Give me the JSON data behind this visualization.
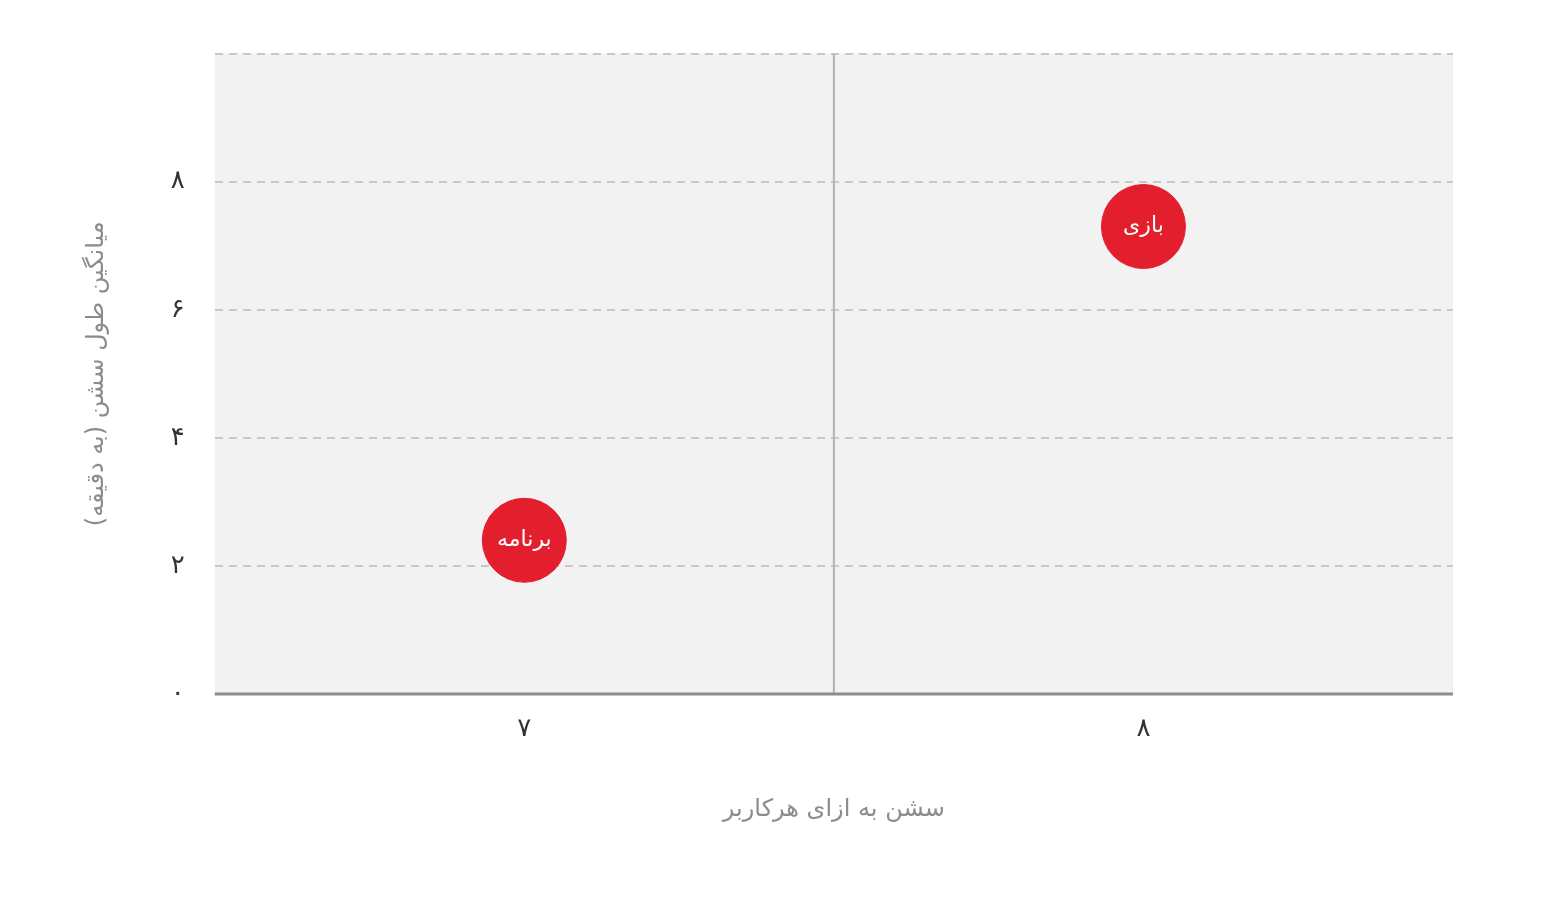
{
  "chart_data": {
    "type": "scatter",
    "xlabel": "سشن به ازای هرکاربر",
    "ylabel": "میانگین طول سشن (به دقیقه)",
    "xlim": [
      6.5,
      8.5
    ],
    "xticks": [
      {
        "value": 7,
        "label": "۷"
      },
      {
        "value": 8,
        "label": "۸"
      }
    ],
    "ylim": [
      0,
      10
    ],
    "yticks": [
      {
        "value": 0,
        "label": "۰"
      },
      {
        "value": 2,
        "label": "۲"
      },
      {
        "value": 4,
        "label": "۴"
      },
      {
        "value": 6,
        "label": "۶"
      },
      {
        "value": 8,
        "label": "۸"
      },
      {
        "value": 10,
        "label": null
      }
    ],
    "series": [
      {
        "name": "برنامه",
        "color": "#e31e2d",
        "x": [
          7.0
        ],
        "values": [
          2.4
        ]
      },
      {
        "name": "بازی",
        "color": "#e31e2d",
        "x": [
          8.0
        ],
        "values": [
          7.3
        ]
      }
    ],
    "ref_lines": [
      {
        "axis": "x",
        "value": 7.5,
        "color": "#b3b3b3",
        "line_style": "solid"
      }
    ],
    "grid": "y",
    "legend": false,
    "marker": "circle"
  }
}
